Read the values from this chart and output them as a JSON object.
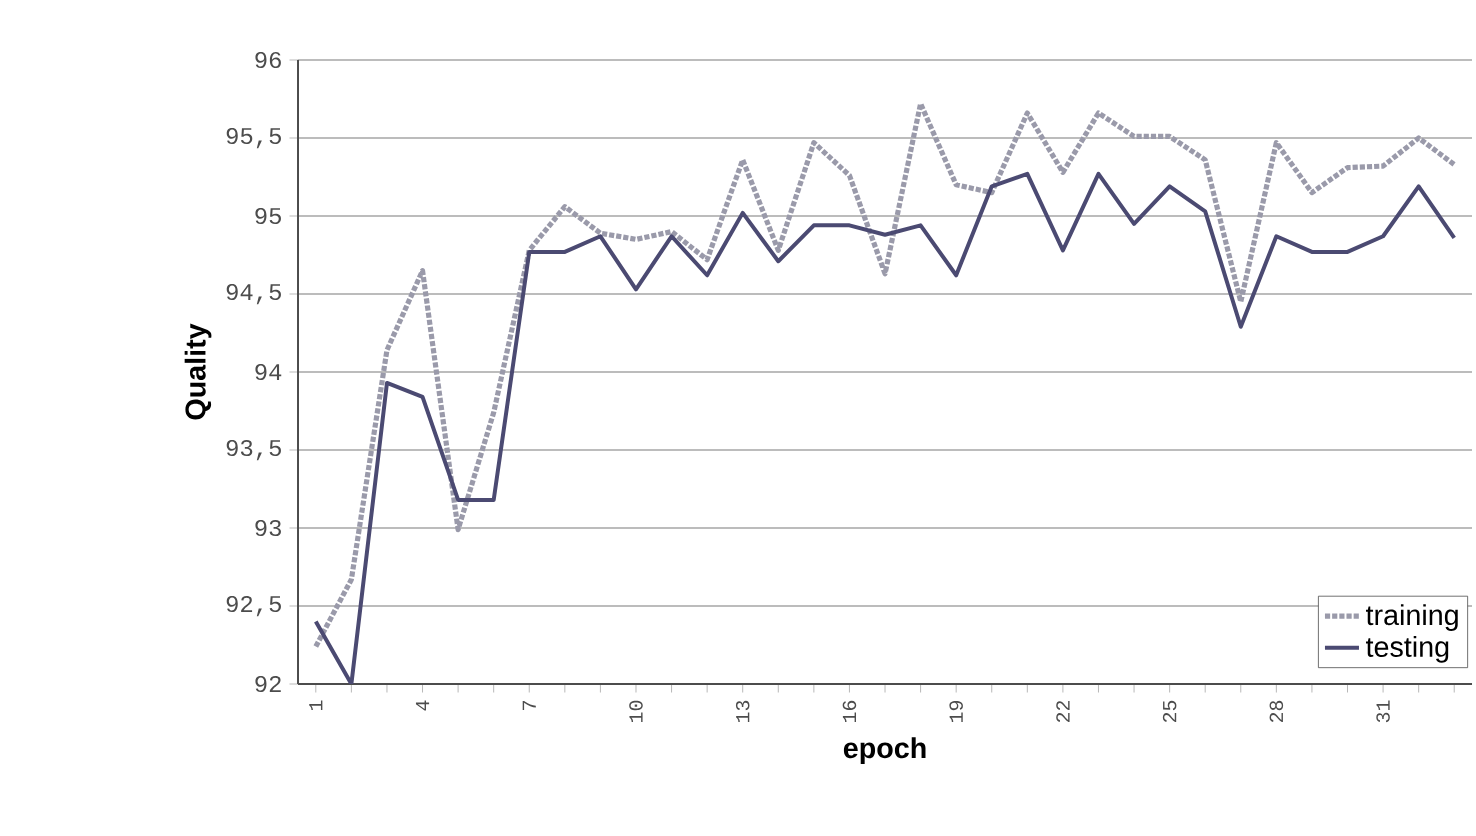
{
  "chart_data": {
    "type": "line",
    "xlabel": "epoch",
    "ylabel": "Quality",
    "categories": [
      "1",
      null,
      null,
      "4",
      null,
      null,
      "7",
      null,
      null,
      "10",
      null,
      null,
      "13",
      null,
      null,
      "16",
      null,
      null,
      "19",
      null,
      null,
      "22",
      null,
      null,
      "25",
      null,
      null,
      "28",
      null,
      null,
      "31",
      null,
      null
    ],
    "series": [
      {
        "name": "training",
        "color": "#9a9aaa",
        "line_style": "dotted",
        "values": [
          92.24,
          92.67,
          94.14,
          94.65,
          92.99,
          93.74,
          94.78,
          95.06,
          94.89,
          94.85,
          94.9,
          94.72,
          95.36,
          94.78,
          95.47,
          95.26,
          94.63,
          95.72,
          95.2,
          95.15,
          95.66,
          95.28,
          95.66,
          95.51,
          95.51,
          95.36,
          94.45,
          95.47,
          95.15,
          95.31,
          95.32,
          95.5,
          95.33
        ]
      },
      {
        "name": "testing",
        "color": "#4b4a72",
        "line_style": "solid",
        "values": [
          92.4,
          92.0,
          93.93,
          93.84,
          93.18,
          93.18,
          94.77,
          94.77,
          94.87,
          94.53,
          94.87,
          94.62,
          95.02,
          94.71,
          94.94,
          94.94,
          94.88,
          94.94,
          94.62,
          95.19,
          95.27,
          94.78,
          95.27,
          94.95,
          95.19,
          95.03,
          94.29,
          94.87,
          94.77,
          94.77,
          94.87,
          95.19,
          94.86
        ]
      }
    ],
    "ylim": [
      92,
      96
    ],
    "yticks": [
      92,
      {
        "value": 92.5,
        "label": "92,5"
      },
      93,
      {
        "value": 93.5,
        "label": "93,5"
      },
      94,
      {
        "value": 94.5,
        "label": "94,5"
      },
      95,
      {
        "value": 95.5,
        "label": "95,5"
      },
      96
    ],
    "grid": "y",
    "legend": "bottom right",
    "marker": "none"
  }
}
